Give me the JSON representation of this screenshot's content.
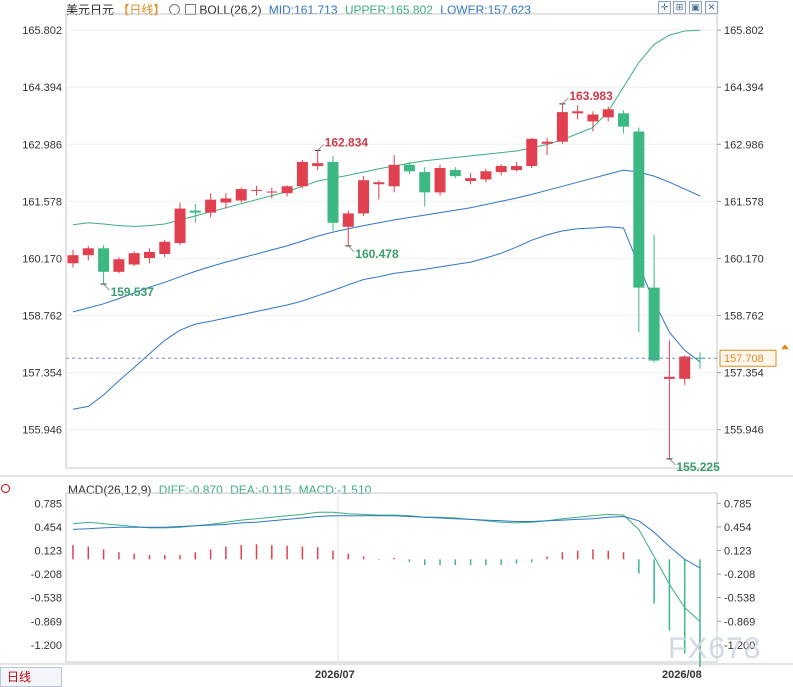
{
  "header": {
    "symbol": "美元日元",
    "timeframe": "【日线】",
    "indicator": "BOLL(26,2)",
    "mid": "MID:161.713",
    "upper": "UPPER:165.802",
    "lower": "LOWER:157.623"
  },
  "macd_header": {
    "name": "MACD(26,12,9)",
    "diff": "DIFF:-0.870",
    "dea": "DEA:-0.115",
    "macd": "MACD:-1.510"
  },
  "footer": {
    "timeframe_tab": "日线",
    "date_1": "2026/07",
    "date_2": "2026/08",
    "watermark": "FX678"
  },
  "colors": {
    "up": "#e0404f",
    "down": "#3cb883",
    "band": "#3cae7f",
    "mid": "#2f76c8",
    "dea": "#2f76c8",
    "high_label": "#d23a47",
    "low_label": "#3a9e6c",
    "grid": "#dddddd",
    "current_price": "#e08a1e"
  },
  "icons": [
    "crosshair-icon",
    "zoom-icon",
    "collapse-icon",
    "close-icon"
  ],
  "chart_data": [
    {
      "type": "candlestick",
      "title": "美元日元【日线】",
      "ylim": [
        155.0,
        166.2
      ],
      "yticks": [
        "165.802",
        "164.394",
        "162.986",
        "161.578",
        "160.170",
        "158.762",
        "157.354",
        "155.946"
      ],
      "current_price": "157.708",
      "annotations": [
        {
          "text": "159.537",
          "value": 159.537,
          "index": 2,
          "kind": "low"
        },
        {
          "text": "162.834",
          "value": 162.834,
          "index": 16,
          "kind": "high"
        },
        {
          "text": "160.478",
          "value": 160.478,
          "index": 18,
          "kind": "low"
        },
        {
          "text": "163.983",
          "value": 163.983,
          "index": 32,
          "kind": "high"
        },
        {
          "text": "155.225",
          "value": 155.225,
          "index": 39,
          "kind": "low"
        }
      ],
      "candles": [
        {
          "o": 160.05,
          "h": 160.38,
          "l": 159.95,
          "c": 160.25
        },
        {
          "o": 160.25,
          "h": 160.48,
          "l": 160.12,
          "c": 160.42
        },
        {
          "o": 160.42,
          "h": 160.5,
          "l": 159.54,
          "c": 159.84
        },
        {
          "o": 159.84,
          "h": 160.2,
          "l": 159.8,
          "c": 160.15
        },
        {
          "o": 160.02,
          "h": 160.35,
          "l": 159.98,
          "c": 160.3
        },
        {
          "o": 160.18,
          "h": 160.42,
          "l": 160.05,
          "c": 160.33
        },
        {
          "o": 160.28,
          "h": 160.62,
          "l": 160.2,
          "c": 160.58
        },
        {
          "o": 160.55,
          "h": 161.55,
          "l": 160.5,
          "c": 161.4
        },
        {
          "o": 161.35,
          "h": 161.52,
          "l": 161.05,
          "c": 161.3
        },
        {
          "o": 161.3,
          "h": 161.78,
          "l": 161.18,
          "c": 161.62
        },
        {
          "o": 161.55,
          "h": 161.78,
          "l": 161.4,
          "c": 161.65
        },
        {
          "o": 161.6,
          "h": 161.92,
          "l": 161.55,
          "c": 161.88
        },
        {
          "o": 161.85,
          "h": 161.96,
          "l": 161.72,
          "c": 161.86
        },
        {
          "o": 161.82,
          "h": 161.92,
          "l": 161.65,
          "c": 161.82
        },
        {
          "o": 161.78,
          "h": 161.98,
          "l": 161.7,
          "c": 161.95
        },
        {
          "o": 161.95,
          "h": 162.6,
          "l": 161.9,
          "c": 162.55
        },
        {
          "o": 162.45,
          "h": 162.83,
          "l": 162.35,
          "c": 162.52
        },
        {
          "o": 162.55,
          "h": 162.7,
          "l": 160.85,
          "c": 161.05
        },
        {
          "o": 160.95,
          "h": 161.35,
          "l": 160.48,
          "c": 161.28
        },
        {
          "o": 161.28,
          "h": 162.2,
          "l": 161.22,
          "c": 162.1
        },
        {
          "o": 162.0,
          "h": 162.1,
          "l": 161.62,
          "c": 162.05
        },
        {
          "o": 161.95,
          "h": 162.72,
          "l": 161.8,
          "c": 162.48
        },
        {
          "o": 162.48,
          "h": 162.55,
          "l": 162.25,
          "c": 162.32
        },
        {
          "o": 162.3,
          "h": 162.42,
          "l": 161.45,
          "c": 161.8
        },
        {
          "o": 161.8,
          "h": 162.48,
          "l": 161.72,
          "c": 162.4
        },
        {
          "o": 162.35,
          "h": 162.42,
          "l": 162.15,
          "c": 162.2
        },
        {
          "o": 162.08,
          "h": 162.28,
          "l": 162.0,
          "c": 162.15
        },
        {
          "o": 162.12,
          "h": 162.38,
          "l": 162.05,
          "c": 162.32
        },
        {
          "o": 162.3,
          "h": 162.5,
          "l": 162.22,
          "c": 162.45
        },
        {
          "o": 162.35,
          "h": 162.55,
          "l": 162.32,
          "c": 162.45
        },
        {
          "o": 162.45,
          "h": 163.15,
          "l": 162.4,
          "c": 163.12
        },
        {
          "o": 163.0,
          "h": 163.15,
          "l": 162.72,
          "c": 163.05
        },
        {
          "o": 163.05,
          "h": 163.98,
          "l": 163.0,
          "c": 163.78
        },
        {
          "o": 163.75,
          "h": 163.95,
          "l": 163.6,
          "c": 163.8
        },
        {
          "o": 163.55,
          "h": 163.8,
          "l": 163.3,
          "c": 163.72
        },
        {
          "o": 163.65,
          "h": 163.92,
          "l": 163.55,
          "c": 163.85
        },
        {
          "o": 163.75,
          "h": 163.82,
          "l": 163.25,
          "c": 163.42
        },
        {
          "o": 163.3,
          "h": 163.4,
          "l": 158.35,
          "c": 159.45
        },
        {
          "o": 159.45,
          "h": 160.75,
          "l": 157.6,
          "c": 157.65
        },
        {
          "o": 157.2,
          "h": 158.15,
          "l": 155.23,
          "c": 157.25
        },
        {
          "o": 157.2,
          "h": 157.78,
          "l": 157.05,
          "c": 157.75
        },
        {
          "o": 157.72,
          "h": 157.85,
          "l": 157.45,
          "c": 157.71
        }
      ],
      "bollinger": {
        "upper": [
          161.0,
          161.05,
          161.02,
          160.98,
          160.96,
          160.98,
          161.02,
          161.12,
          161.22,
          161.32,
          161.42,
          161.52,
          161.62,
          161.72,
          161.82,
          161.95,
          162.08,
          162.15,
          162.22,
          162.3,
          162.38,
          162.45,
          162.52,
          162.58,
          162.62,
          162.66,
          162.7,
          162.74,
          162.78,
          162.82,
          162.9,
          162.98,
          163.1,
          163.25,
          163.4,
          163.8,
          164.4,
          165.0,
          165.45,
          165.68,
          165.78,
          165.8
        ],
        "mid": [
          158.85,
          158.95,
          159.05,
          159.18,
          159.32,
          159.46,
          159.58,
          159.72,
          159.85,
          159.97,
          160.08,
          160.18,
          160.28,
          160.38,
          160.48,
          160.6,
          160.72,
          160.82,
          160.9,
          160.98,
          161.05,
          161.12,
          161.18,
          161.24,
          161.3,
          161.36,
          161.42,
          161.5,
          161.58,
          161.66,
          161.75,
          161.85,
          161.95,
          162.05,
          162.15,
          162.25,
          162.35,
          162.3,
          162.2,
          162.05,
          161.88,
          161.71
        ],
        "lower": [
          156.45,
          156.52,
          156.8,
          157.15,
          157.48,
          157.82,
          158.15,
          158.4,
          158.55,
          158.62,
          158.7,
          158.78,
          158.86,
          158.94,
          159.02,
          159.12,
          159.25,
          159.38,
          159.52,
          159.65,
          159.72,
          159.8,
          159.85,
          159.9,
          159.96,
          160.02,
          160.08,
          160.18,
          160.3,
          160.45,
          160.62,
          160.75,
          160.85,
          160.9,
          160.92,
          160.95,
          160.92,
          160.0,
          159.1,
          158.35,
          157.9,
          157.62
        ]
      }
    },
    {
      "type": "macd",
      "title": "MACD(26,12,9)",
      "ylim": [
        -1.44,
        0.93
      ],
      "yticks": [
        "0.785",
        "0.454",
        "0.123",
        "-0.208",
        "-0.538",
        "-0.869",
        "-1.200"
      ],
      "diff": [
        0.5,
        0.52,
        0.5,
        0.48,
        0.46,
        0.44,
        0.44,
        0.45,
        0.47,
        0.49,
        0.52,
        0.55,
        0.57,
        0.59,
        0.61,
        0.63,
        0.66,
        0.66,
        0.64,
        0.63,
        0.62,
        0.62,
        0.61,
        0.59,
        0.59,
        0.58,
        0.56,
        0.54,
        0.52,
        0.51,
        0.52,
        0.54,
        0.57,
        0.59,
        0.61,
        0.63,
        0.62,
        0.42,
        0.04,
        -0.35,
        -0.68,
        -0.87
      ],
      "dea": [
        0.42,
        0.43,
        0.44,
        0.45,
        0.45,
        0.45,
        0.45,
        0.46,
        0.47,
        0.48,
        0.49,
        0.51,
        0.52,
        0.54,
        0.56,
        0.58,
        0.6,
        0.61,
        0.61,
        0.61,
        0.61,
        0.61,
        0.6,
        0.59,
        0.58,
        0.57,
        0.56,
        0.55,
        0.54,
        0.53,
        0.53,
        0.54,
        0.55,
        0.56,
        0.57,
        0.59,
        0.6,
        0.54,
        0.38,
        0.18,
        0.0,
        -0.12
      ],
      "macd": [
        0.2,
        0.18,
        0.14,
        0.1,
        0.08,
        0.06,
        0.06,
        0.06,
        0.1,
        0.14,
        0.18,
        0.2,
        0.21,
        0.2,
        0.19,
        0.18,
        0.17,
        0.12,
        0.08,
        0.04,
        -0.01,
        0.02,
        -0.04,
        -0.08,
        -0.08,
        -0.08,
        -0.08,
        -0.08,
        -0.08,
        -0.06,
        -0.04,
        0.04,
        0.1,
        0.12,
        0.14,
        0.12,
        0.1,
        -0.2,
        -0.62,
        -1.0,
        -1.32,
        -1.51
      ]
    }
  ]
}
